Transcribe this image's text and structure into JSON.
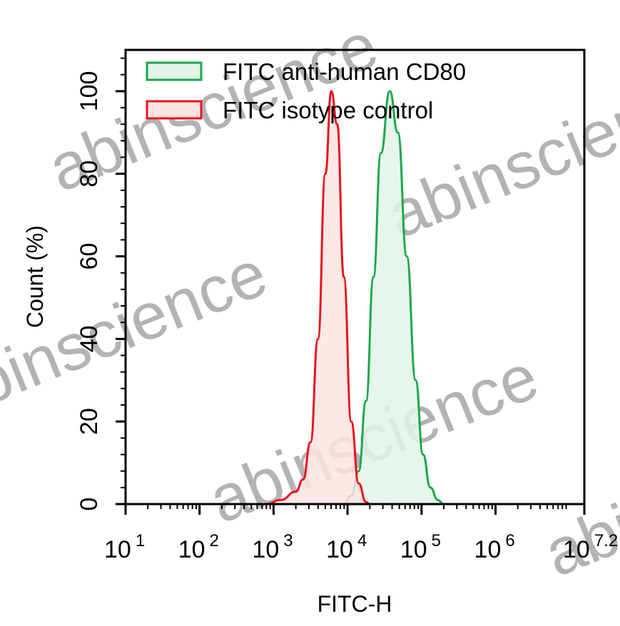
{
  "chart_data": {
    "type": "area",
    "title": "",
    "xlabel": "FITC-H",
    "ylabel": "Count (%)",
    "xscale": "log",
    "xlim": [
      10,
      15848932
    ],
    "ylim": [
      0,
      110
    ],
    "grid": false,
    "x_ticks": [
      {
        "base": "10",
        "exp": "1",
        "value": 10
      },
      {
        "base": "10",
        "exp": "2",
        "value": 100
      },
      {
        "base": "10",
        "exp": "3",
        "value": 1000
      },
      {
        "base": "10",
        "exp": "4",
        "value": 10000
      },
      {
        "base": "10",
        "exp": "5",
        "value": 100000
      },
      {
        "base": "10",
        "exp": "6",
        "value": 1000000
      },
      {
        "base": "10",
        "exp": "7.2",
        "value": 15848932
      }
    ],
    "y_ticks": [
      "0",
      "20",
      "40",
      "60",
      "80",
      "100"
    ],
    "legend_position": "top-left",
    "series": [
      {
        "name": "FITC anti-human CD80",
        "color": "#1aa84a",
        "fill": "#e3f5e8",
        "x": [
          8913,
          11220,
          14125,
          17783,
          22387,
          28184,
          37154,
          47863,
          63096,
          83176,
          104713,
          131826,
          165959,
          199526
        ],
        "y": [
          0,
          2,
          8,
          25,
          55,
          85,
          100,
          90,
          60,
          30,
          12,
          4,
          1,
          0
        ]
      },
      {
        "name": "FITC isotype control",
        "color": "#e8141b",
        "fill": "#fde3e3",
        "x": [
          794,
          1259,
          1995,
          2512,
          3162,
          3981,
          5012,
          6026,
          7244,
          8913,
          11220,
          14125,
          17783,
          19953
        ],
        "y": [
          0,
          1,
          3,
          6,
          15,
          40,
          80,
          100,
          92,
          55,
          20,
          5,
          0.5,
          0
        ]
      }
    ]
  },
  "watermark": "abinscience"
}
